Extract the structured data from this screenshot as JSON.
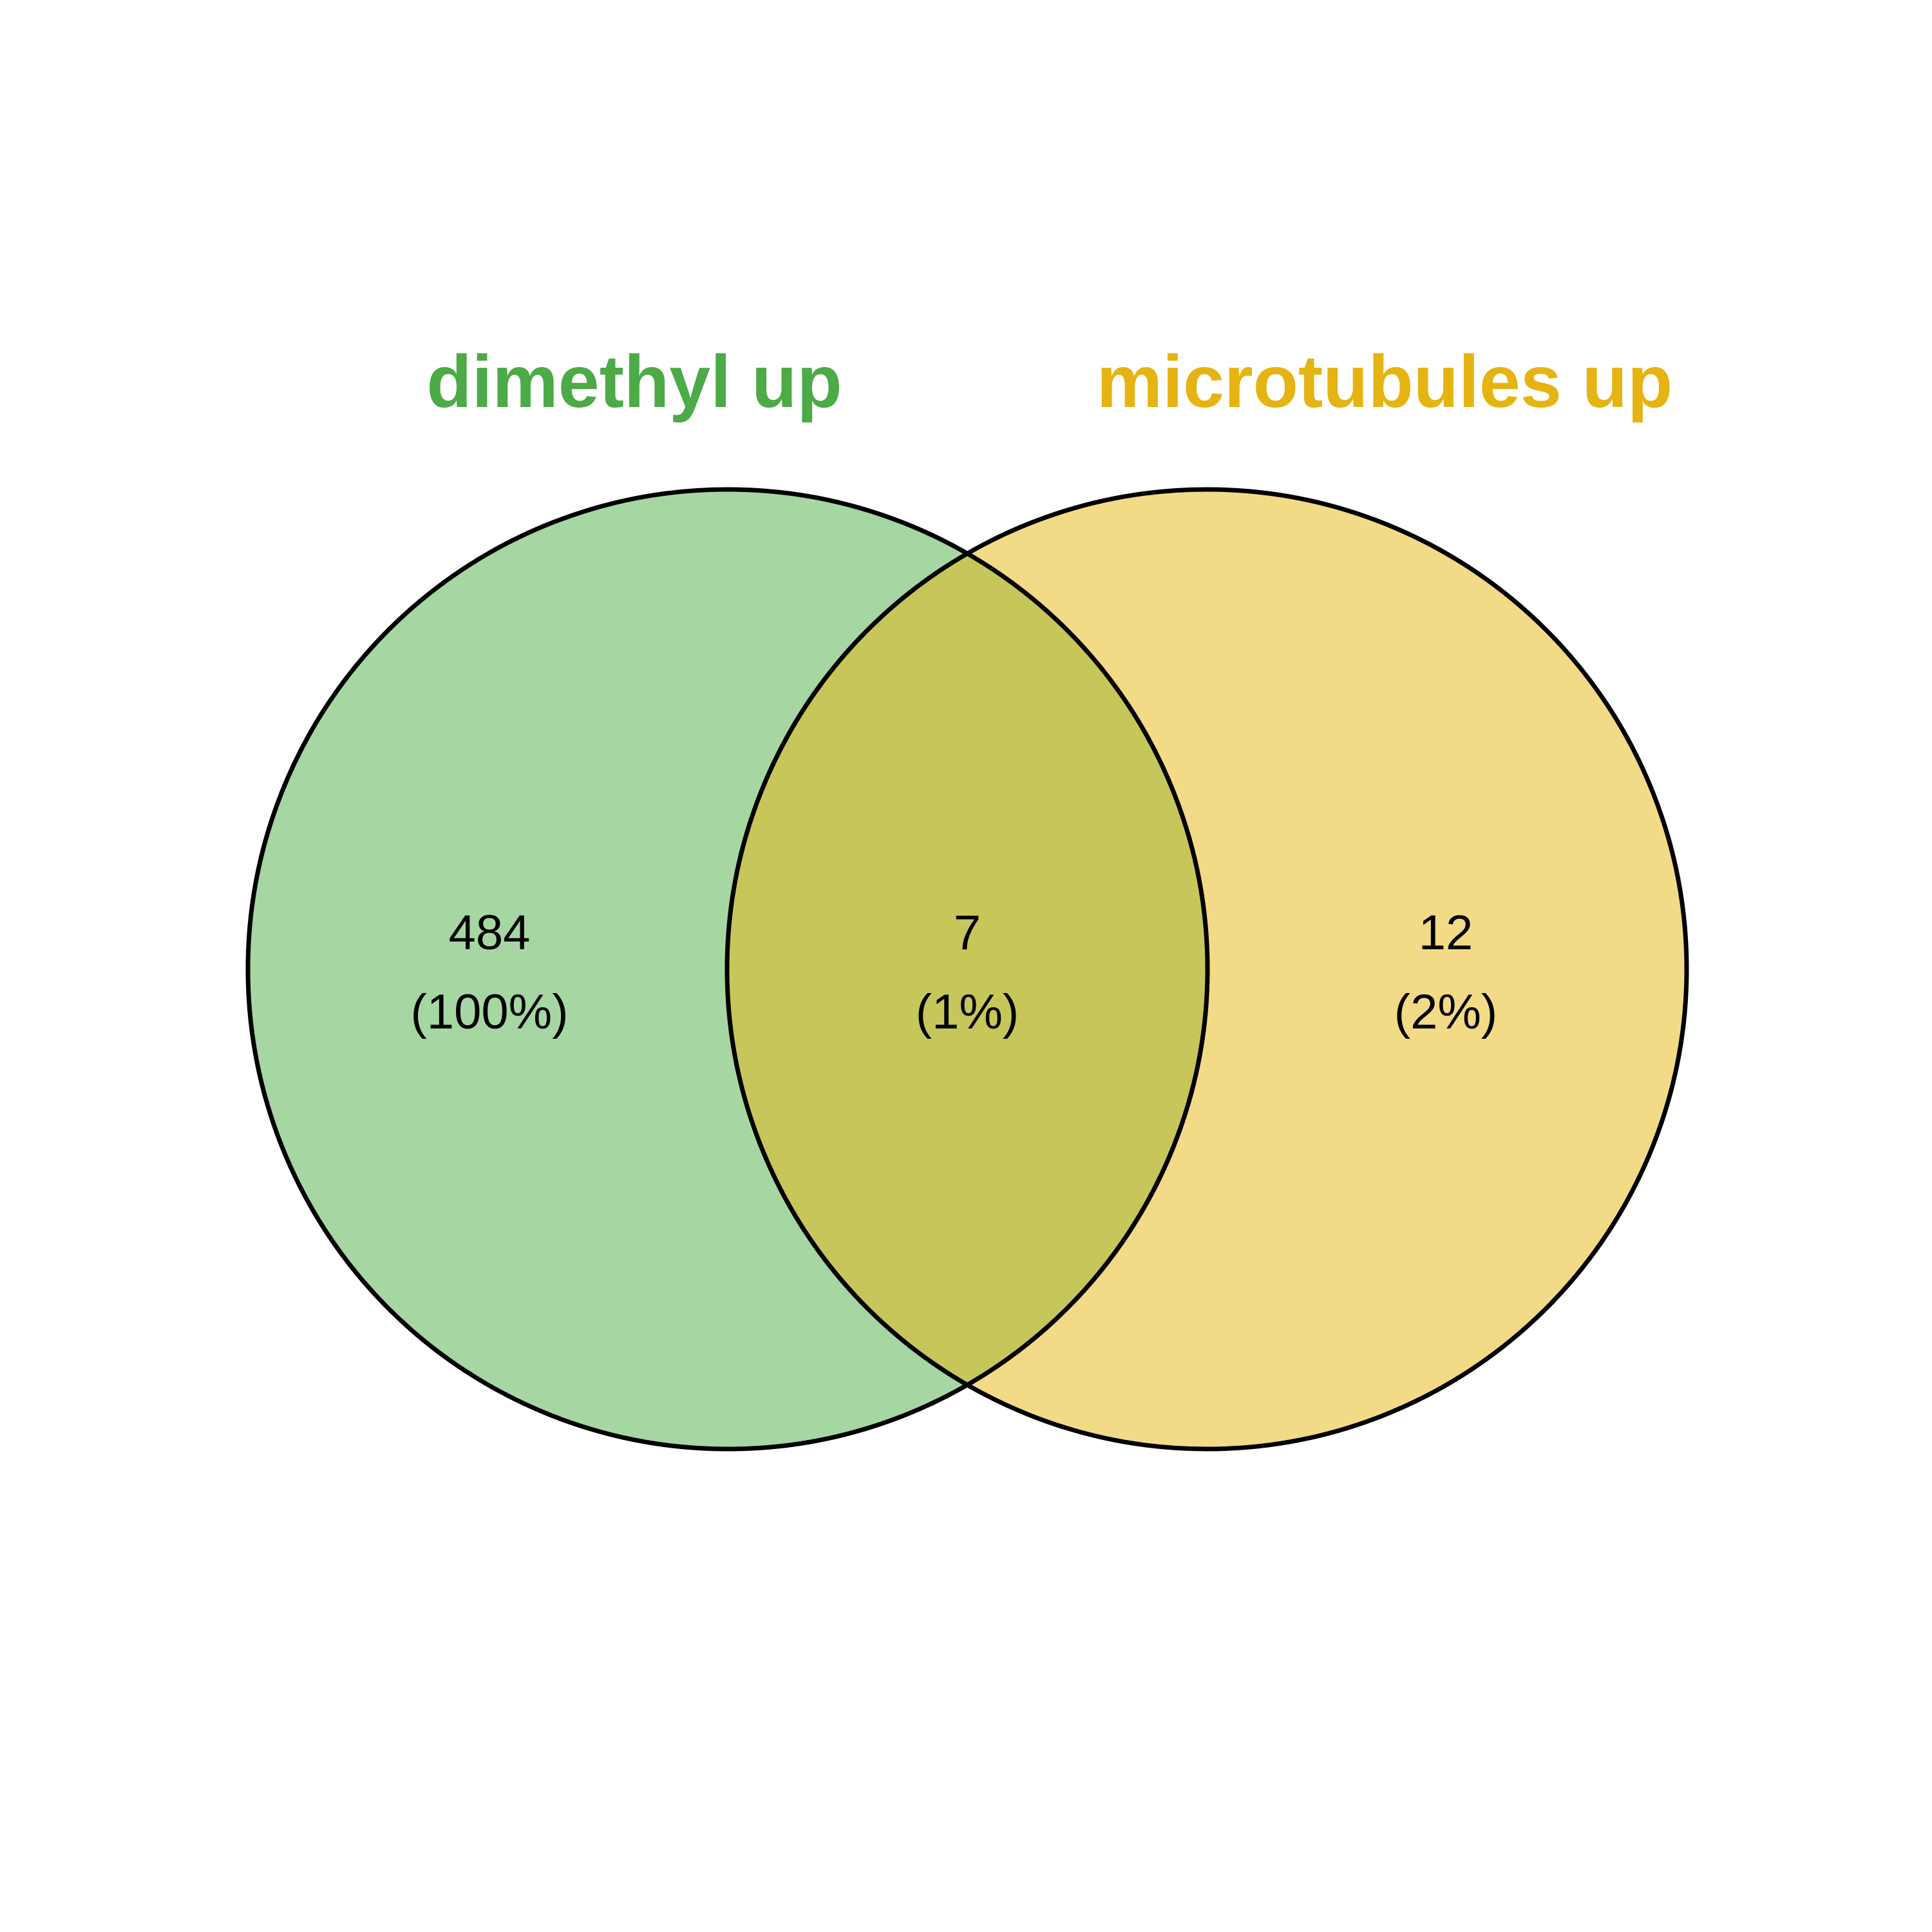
{
  "diagram": {
    "type": "venn",
    "sets": [
      {
        "id": "A",
        "label": "dimethyl up",
        "label_color": "#4caa47",
        "fill_color": "#a6d7a3",
        "count": "484",
        "percent": "(100%)"
      },
      {
        "id": "B",
        "label": "microtubules up",
        "label_color": "#e6b412",
        "fill_color": "#f3da87",
        "count": "12",
        "percent": "(2%)"
      }
    ],
    "intersection": {
      "sets": [
        "A",
        "B"
      ],
      "fill_color": "#c7c65a",
      "count": "7",
      "percent": "(1%)"
    },
    "outline_color": "#000000"
  }
}
